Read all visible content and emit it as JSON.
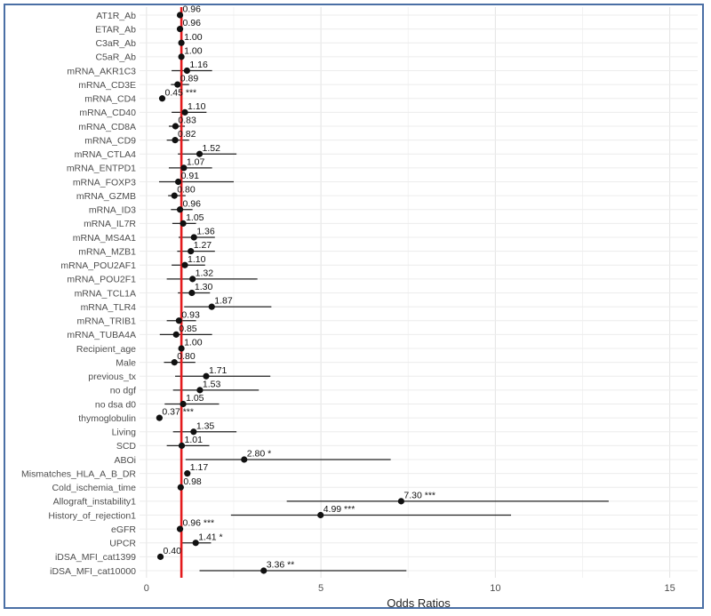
{
  "chart_data": {
    "type": "forest",
    "xlabel": "Odds Ratios",
    "xlim": [
      -0.2,
      15.8
    ],
    "xticks": [
      0,
      5,
      10,
      15
    ],
    "reference_line": 1,
    "reference_color": "#e41a1c",
    "rows": [
      {
        "label": "AT1R_Ab",
        "or": 0.96,
        "lo": 0.94,
        "hi": 0.98,
        "text": "0.96"
      },
      {
        "label": "ETAR_Ab",
        "or": 0.96,
        "lo": 0.94,
        "hi": 0.98,
        "text": "0.96"
      },
      {
        "label": "C3aR_Ab",
        "or": 1.0,
        "lo": 0.98,
        "hi": 1.02,
        "text": "1.00"
      },
      {
        "label": "C5aR_Ab",
        "or": 1.0,
        "lo": 0.98,
        "hi": 1.02,
        "text": "1.00"
      },
      {
        "label": "mRNA_AKR1C3",
        "or": 1.16,
        "lo": 0.72,
        "hi": 1.88,
        "text": "1.16"
      },
      {
        "label": "mRNA_CD3E",
        "or": 0.89,
        "lo": 0.7,
        "hi": 1.22,
        "text": "0.89"
      },
      {
        "label": "mRNA_CD4",
        "or": 0.45,
        "lo": 0.43,
        "hi": 0.47,
        "text": "0.45 ***"
      },
      {
        "label": "mRNA_CD40",
        "or": 1.1,
        "lo": 0.72,
        "hi": 1.72,
        "text": "1.10"
      },
      {
        "label": "mRNA_CD8A",
        "or": 0.83,
        "lo": 0.64,
        "hi": 1.1,
        "text": "0.83"
      },
      {
        "label": "mRNA_CD9",
        "or": 0.82,
        "lo": 0.58,
        "hi": 1.22,
        "text": "0.82"
      },
      {
        "label": "mRNA_CTLA4",
        "or": 1.52,
        "lo": 0.9,
        "hi": 2.58,
        "text": "1.52"
      },
      {
        "label": "mRNA_ENTPD1",
        "or": 1.07,
        "lo": 0.64,
        "hi": 1.88,
        "text": "1.07"
      },
      {
        "label": "mRNA_FOXP3",
        "or": 0.91,
        "lo": 0.36,
        "hi": 2.5,
        "text": "0.91"
      },
      {
        "label": "mRNA_GZMB",
        "or": 0.8,
        "lo": 0.62,
        "hi": 1.12,
        "text": "0.80"
      },
      {
        "label": "mRNA_ID3",
        "or": 0.96,
        "lo": 0.7,
        "hi": 1.32,
        "text": "0.96"
      },
      {
        "label": "mRNA_IL7R",
        "or": 1.05,
        "lo": 0.74,
        "hi": 1.42,
        "text": "1.05"
      },
      {
        "label": "mRNA_MS4A1",
        "or": 1.36,
        "lo": 0.92,
        "hi": 1.96,
        "text": "1.36"
      },
      {
        "label": "mRNA_MZB1",
        "or": 1.27,
        "lo": 0.88,
        "hi": 1.96,
        "text": "1.27"
      },
      {
        "label": "mRNA_POU2AF1",
        "or": 1.1,
        "lo": 0.72,
        "hi": 1.68,
        "text": "1.10"
      },
      {
        "label": "mRNA_POU2F1",
        "or": 1.32,
        "lo": 0.58,
        "hi": 3.18,
        "text": "1.32"
      },
      {
        "label": "mRNA_TCL1A",
        "or": 1.3,
        "lo": 0.9,
        "hi": 1.82,
        "text": "1.30"
      },
      {
        "label": "mRNA_TLR4",
        "or": 1.87,
        "lo": 1.08,
        "hi": 3.58,
        "text": "1.87"
      },
      {
        "label": "mRNA_TRIB1",
        "or": 0.93,
        "lo": 0.58,
        "hi": 1.42,
        "text": "0.93"
      },
      {
        "label": "mRNA_TUBA4A",
        "or": 0.85,
        "lo": 0.38,
        "hi": 1.88,
        "text": "0.85"
      },
      {
        "label": "Recipient_age",
        "or": 1.0,
        "lo": 0.98,
        "hi": 1.02,
        "text": "1.00"
      },
      {
        "label": "Male",
        "or": 0.8,
        "lo": 0.5,
        "hi": 1.4,
        "text": "0.80"
      },
      {
        "label": "previous_tx",
        "or": 1.71,
        "lo": 0.82,
        "hi": 3.55,
        "text": "1.71"
      },
      {
        "label": "no dgf",
        "or": 1.53,
        "lo": 0.76,
        "hi": 3.22,
        "text": "1.53"
      },
      {
        "label": "no dsa d0",
        "or": 1.05,
        "lo": 0.52,
        "hi": 2.08,
        "text": "1.05"
      },
      {
        "label": "thymoglobulin",
        "or": 0.37,
        "lo": 0.35,
        "hi": 0.39,
        "text": "0.37 ***"
      },
      {
        "label": "Living",
        "or": 1.35,
        "lo": 0.76,
        "hi": 2.58,
        "text": "1.35"
      },
      {
        "label": "SCD",
        "or": 1.01,
        "lo": 0.58,
        "hi": 1.8,
        "text": "1.01"
      },
      {
        "label": "ABOi",
        "or": 2.8,
        "lo": 1.12,
        "hi": 7.0,
        "text": "2.80 *"
      },
      {
        "label": "Mismatches_HLA_A_B_DR",
        "or": 1.17,
        "lo": 1.15,
        "hi": 1.19,
        "text": "1.17"
      },
      {
        "label": "Cold_ischemia_time",
        "or": 0.98,
        "lo": 0.96,
        "hi": 1.0,
        "text": "0.98"
      },
      {
        "label": "Allograft_instability1",
        "or": 7.3,
        "lo": 4.02,
        "hi": 13.25,
        "text": "7.30 ***"
      },
      {
        "label": "History_of_rejection1",
        "or": 4.99,
        "lo": 2.42,
        "hi": 10.45,
        "text": "4.99 ***"
      },
      {
        "label": "eGFR",
        "or": 0.96,
        "lo": 0.94,
        "hi": 0.98,
        "text": "0.96 ***"
      },
      {
        "label": "UPCR",
        "or": 1.41,
        "lo": 1.02,
        "hi": 1.85,
        "text": "1.41 *"
      },
      {
        "label": "iDSA_MFI_cat1399",
        "or": 0.4,
        "lo": 0.38,
        "hi": 0.42,
        "text": "0.40"
      },
      {
        "label": "iDSA_MFI_cat10000",
        "or": 3.36,
        "lo": 1.52,
        "hi": 7.45,
        "text": "3.36 **"
      }
    ]
  }
}
